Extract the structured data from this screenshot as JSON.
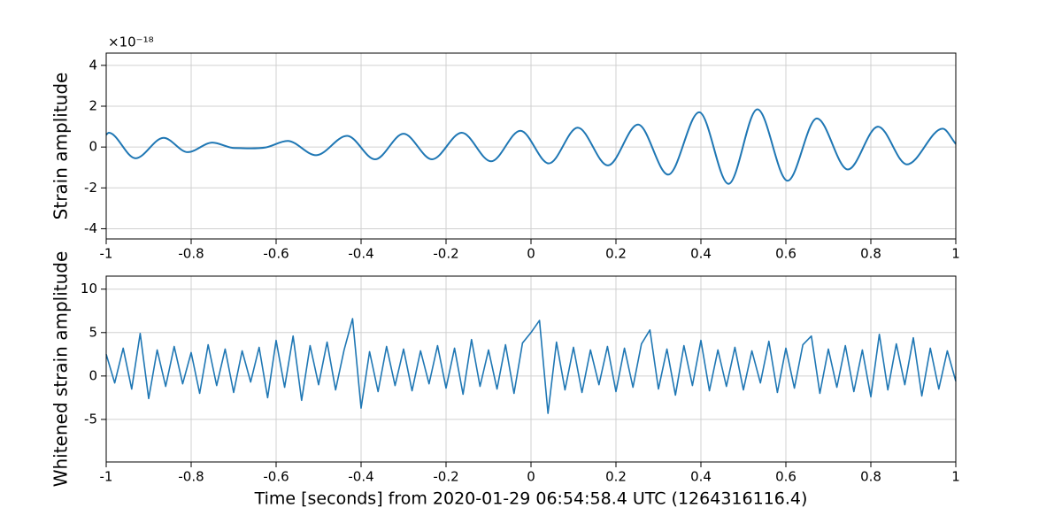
{
  "chart_data": [
    {
      "type": "line",
      "ylabel": "Strain amplitude",
      "offset_text": "×10⁻¹⁸",
      "color": "#1f77b4",
      "grid": true,
      "xlim": [
        -1,
        1
      ],
      "xticks": [
        -1,
        -0.8,
        -0.6,
        -0.4,
        -0.2,
        0,
        0.2,
        0.4,
        0.6,
        0.8,
        1
      ],
      "ylim": [
        -4.5,
        4.6
      ],
      "yticks": [
        -4,
        -2,
        0,
        2,
        4
      ],
      "x": [
        -1,
        -0.994,
        -0.931,
        -0.865,
        -0.808,
        -0.75,
        -0.698,
        -0.625,
        -0.573,
        -0.506,
        -0.433,
        -0.367,
        -0.3,
        -0.233,
        -0.163,
        -0.094,
        -0.025,
        0.042,
        0.11,
        0.181,
        0.252,
        0.323,
        0.396,
        0.465,
        0.533,
        0.604,
        0.673,
        0.746,
        0.817,
        0.885,
        0.969,
        1
      ],
      "values": [
        0.6,
        0.7,
        -0.55,
        0.45,
        -0.25,
        0.22,
        -0.05,
        -0.02,
        0.3,
        -0.4,
        0.55,
        -0.6,
        0.65,
        -0.6,
        0.7,
        -0.7,
        0.8,
        -0.8,
        0.95,
        -0.9,
        1.1,
        -1.35,
        1.7,
        -1.8,
        1.85,
        -1.65,
        1.4,
        -1.1,
        1.0,
        -0.85,
        0.9,
        0.15
      ]
    },
    {
      "type": "line",
      "ylabel": "Whitened strain amplitude",
      "xlabel": "Time [seconds] from 2020-01-29 06:54:58.4 UTC (1264316116.4)",
      "color": "#1f77b4",
      "grid": true,
      "xlim": [
        -1,
        1
      ],
      "xticks": [
        -1,
        -0.8,
        -0.6,
        -0.4,
        -0.2,
        0,
        0.2,
        0.4,
        0.6,
        0.8,
        1
      ],
      "ylim": [
        -9.9,
        11.5
      ],
      "yticks": [
        -5,
        0,
        5,
        10
      ],
      "x": [
        -1,
        -0.98,
        -0.96,
        -0.94,
        -0.92,
        -0.9,
        -0.88,
        -0.86,
        -0.84,
        -0.82,
        -0.8,
        -0.78,
        -0.76,
        -0.74,
        -0.72,
        -0.7,
        -0.68,
        -0.66,
        -0.64,
        -0.62,
        -0.6,
        -0.58,
        -0.56,
        -0.54,
        -0.52,
        -0.5,
        -0.48,
        -0.46,
        -0.44,
        -0.42,
        -0.4,
        -0.38,
        -0.36,
        -0.34,
        -0.32,
        -0.3,
        -0.28,
        -0.26,
        -0.24,
        -0.22,
        -0.2,
        -0.18,
        -0.16,
        -0.14,
        -0.12,
        -0.1,
        -0.08,
        -0.06,
        -0.04,
        -0.02,
        0,
        0.02,
        0.04,
        0.06,
        0.08,
        0.1,
        0.12,
        0.14,
        0.16,
        0.18,
        0.2,
        0.22,
        0.24,
        0.26,
        0.28,
        0.3,
        0.32,
        0.34,
        0.36,
        0.38,
        0.4,
        0.42,
        0.44,
        0.46,
        0.48,
        0.5,
        0.52,
        0.54,
        0.56,
        0.58,
        0.6,
        0.62,
        0.64,
        0.66,
        0.68,
        0.7,
        0.72,
        0.74,
        0.76,
        0.78,
        0.8,
        0.82,
        0.84,
        0.86,
        0.88,
        0.9,
        0.92,
        0.94,
        0.96,
        0.98,
        1
      ],
      "values": [
        2.5,
        -0.8,
        3.2,
        -1.5,
        4.9,
        -2.6,
        3.0,
        -1.2,
        3.4,
        -0.9,
        2.7,
        -2.0,
        3.6,
        -1.1,
        3.1,
        -1.9,
        2.9,
        -0.7,
        3.3,
        -2.5,
        4.1,
        -1.3,
        4.6,
        -2.8,
        3.5,
        -1.0,
        3.9,
        -1.6,
        3.0,
        6.6,
        -3.7,
        2.8,
        -1.8,
        3.4,
        -1.1,
        3.1,
        -1.7,
        2.9,
        -0.9,
        3.5,
        -1.4,
        3.2,
        -2.1,
        4.2,
        -1.2,
        3.0,
        -1.5,
        3.6,
        -2.0,
        3.8,
        5.0,
        6.4,
        -4.3,
        3.9,
        -1.6,
        3.3,
        -1.9,
        3.0,
        -1.0,
        3.4,
        -1.8,
        3.2,
        -1.3,
        3.7,
        5.3,
        -1.5,
        3.1,
        -2.2,
        3.5,
        -1.1,
        4.1,
        -1.7,
        3.0,
        -1.2,
        3.3,
        -1.6,
        2.9,
        -0.8,
        4.0,
        -1.9,
        3.2,
        -1.4,
        3.6,
        4.6,
        -2.0,
        3.1,
        -1.3,
        3.5,
        -1.8,
        3.0,
        -2.4,
        4.8,
        -1.6,
        3.7,
        -1.0,
        4.4,
        -2.3,
        3.2,
        -1.5,
        2.9,
        -0.6
      ]
    }
  ]
}
